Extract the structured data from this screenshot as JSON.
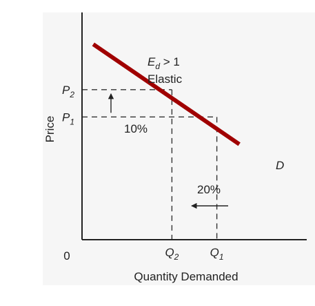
{
  "chart_data": {
    "type": "line",
    "title": "",
    "xlabel": "Quantity Demanded",
    "ylabel": "Price",
    "origin_label": "0",
    "x_ticks": [
      {
        "base": "Q",
        "sub": "2",
        "x": 0.4
      },
      {
        "base": "Q",
        "sub": "1",
        "x": 0.6
      }
    ],
    "y_ticks": [
      {
        "base": "P",
        "sub": "2",
        "y": 0.66
      },
      {
        "base": "P",
        "sub": "1",
        "y": 0.54
      }
    ],
    "series": [
      {
        "name": "D",
        "points": [
          [
            0.05,
            0.86
          ],
          [
            0.7,
            0.42
          ]
        ],
        "color": "#a00000"
      }
    ],
    "annotations": {
      "elasticity_symbol": "E",
      "elasticity_subscript": "d",
      "elasticity_relation": " > 1",
      "elasticity_word": "Elastic",
      "price_change": "10%",
      "quantity_change": "20%"
    },
    "xlim": [
      0,
      1
    ],
    "ylim": [
      0,
      1
    ],
    "grid": false,
    "colors": {
      "demand_curve": "#a00000",
      "axis": "#222222",
      "guide": "#333333",
      "panel_bg": "#f6f6f6"
    }
  }
}
